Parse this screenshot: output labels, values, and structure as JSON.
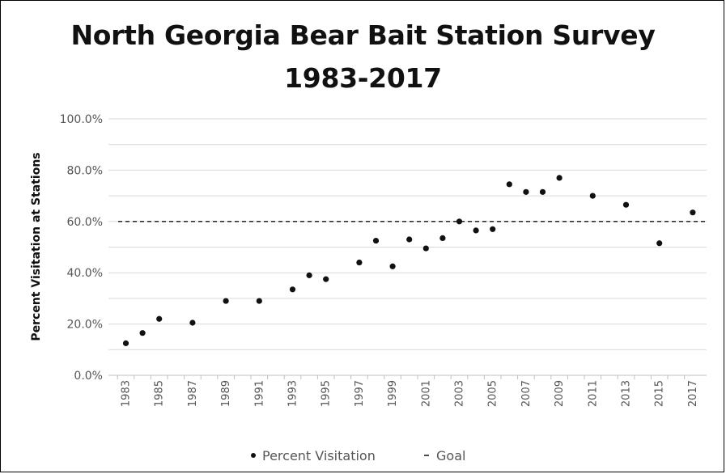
{
  "chart_data": {
    "type": "scatter",
    "title_line1": "North Georgia Bear Bait Station Survey",
    "title_line2": "1983-2017",
    "ylabel": "Percent Visitation at Stations",
    "xlabel": "",
    "ylim": [
      0,
      100
    ],
    "y_ticks": [
      "0.0%",
      "20.0%",
      "40.0%",
      "60.0%",
      "80.0%",
      "100.0%"
    ],
    "y_tick_values": [
      0,
      20,
      40,
      60,
      80,
      100
    ],
    "x_ticks": [
      "1983",
      "1985",
      "1987",
      "1989",
      "1991",
      "1993",
      "1995",
      "1997",
      "1999",
      "2001",
      "2003",
      "2005",
      "2007",
      "2009",
      "2011",
      "2013",
      "2015",
      "2017"
    ],
    "xlim": [
      1983,
      2017
    ],
    "grid": true,
    "legend": "bottom",
    "series": [
      {
        "name": "Percent Visitation",
        "x": [
          1983,
          1984,
          1985,
          1987,
          1989,
          1991,
          1993,
          1994,
          1995,
          1997,
          1998,
          1999,
          2000,
          2001,
          2002,
          2003,
          2004,
          2005,
          2006,
          2007,
          2008,
          2009,
          2011,
          2013,
          2015,
          2017
        ],
        "y": [
          12.5,
          16.5,
          22.0,
          20.5,
          29.0,
          29.0,
          33.5,
          39.0,
          37.5,
          44.0,
          52.5,
          42.5,
          53.0,
          49.5,
          53.5,
          60.0,
          56.5,
          57.0,
          74.5,
          71.5,
          71.5,
          77.0,
          70.0,
          66.5,
          51.5,
          63.5
        ]
      },
      {
        "name": "Goal",
        "value": 60
      }
    ],
    "colors": {
      "points": "#111111",
      "goal": "#111111",
      "grid": "#d9d9d9",
      "axis": "#bfbfbf"
    }
  }
}
